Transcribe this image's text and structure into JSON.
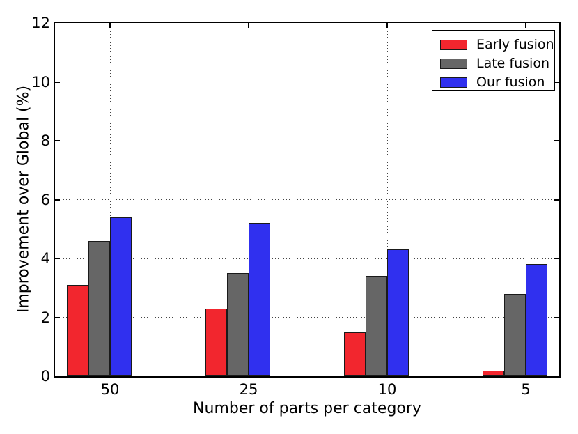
{
  "figure": {
    "background": "#ffffff"
  },
  "chart_data": {
    "type": "bar",
    "title": "",
    "xlabel": "Number of parts per category",
    "ylabel": "Improvement over Global (%)",
    "categories": [
      "50",
      "25",
      "10",
      "5"
    ],
    "series": [
      {
        "name": "Early fusion",
        "color": "#f2262e",
        "values": [
          3.1,
          2.3,
          1.5,
          0.2
        ]
      },
      {
        "name": "Late fusion",
        "color": "#666666",
        "values": [
          4.6,
          3.5,
          3.4,
          2.8
        ]
      },
      {
        "name": "Our fusion",
        "color": "#3030ef",
        "values": [
          5.4,
          5.2,
          4.3,
          3.8
        ]
      }
    ],
    "ylim": [
      0,
      12
    ],
    "yticks": [
      0,
      2,
      4,
      6,
      8,
      10,
      12
    ],
    "grid": true,
    "grid_style": "dotted",
    "grid_color": "#444444",
    "bar_edge_color": "#1a1a1a",
    "axis_color": "#000000",
    "legend_position": "upper-right",
    "legend_border_color": "#000000"
  }
}
